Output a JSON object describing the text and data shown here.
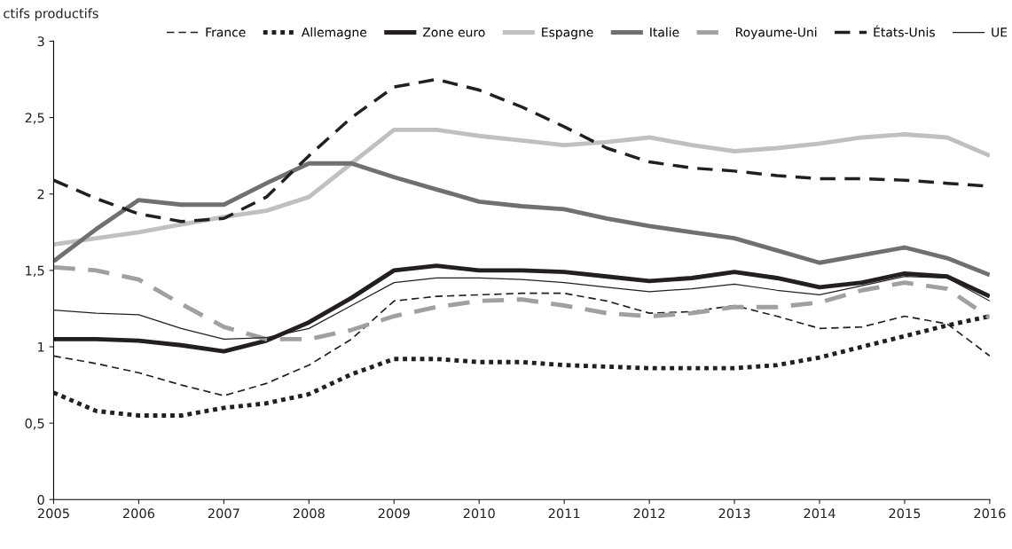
{
  "chart_data": {
    "type": "line",
    "ylabel": "ctifs productifs",
    "x": [
      2005,
      2005.5,
      2006,
      2006.5,
      2007,
      2007.5,
      2008,
      2008.5,
      2009,
      2009.5,
      2010,
      2010.5,
      2011,
      2011.5,
      2012,
      2012.5,
      2013,
      2013.5,
      2014,
      2014.5,
      2015,
      2015.5,
      2016
    ],
    "series": [
      {
        "name": "France",
        "color": "#231f20",
        "line_style": "dashed",
        "values": [
          0.94,
          0.89,
          0.83,
          0.75,
          0.68,
          0.76,
          0.88,
          1.05,
          1.3,
          1.33,
          1.34,
          1.35,
          1.35,
          1.3,
          1.22,
          1.23,
          1.27,
          1.2,
          1.12,
          1.13,
          1.2,
          1.15,
          0.94
        ]
      },
      {
        "name": "Allemagne",
        "color": "#231f20",
        "line_style": "dotted",
        "values": [
          0.7,
          0.58,
          0.55,
          0.55,
          0.6,
          0.63,
          0.69,
          0.82,
          0.92,
          0.92,
          0.9,
          0.9,
          0.88,
          0.87,
          0.86,
          0.86,
          0.86,
          0.88,
          0.93,
          1.0,
          1.07,
          1.14,
          1.2
        ]
      },
      {
        "name": "Zone euro",
        "color": "#231f20",
        "line_style": "solid",
        "values": [
          1.05,
          1.05,
          1.04,
          1.01,
          0.97,
          1.04,
          1.16,
          1.32,
          1.5,
          1.53,
          1.5,
          1.5,
          1.49,
          1.46,
          1.43,
          1.45,
          1.49,
          1.45,
          1.39,
          1.42,
          1.48,
          1.46,
          1.33
        ]
      },
      {
        "name": "Espagne",
        "color": "#c0c0c0",
        "line_style": "solid",
        "values": [
          1.67,
          1.71,
          1.75,
          1.8,
          1.85,
          1.89,
          1.98,
          2.2,
          2.42,
          2.42,
          2.38,
          2.35,
          2.32,
          2.34,
          2.37,
          2.32,
          2.28,
          2.3,
          2.33,
          2.37,
          2.39,
          2.37,
          2.25
        ]
      },
      {
        "name": "Italie",
        "color": "#707070",
        "line_style": "solid",
        "values": [
          1.56,
          1.77,
          1.96,
          1.93,
          1.93,
          2.07,
          2.2,
          2.2,
          2.11,
          2.03,
          1.95,
          1.92,
          1.9,
          1.84,
          1.79,
          1.75,
          1.71,
          1.63,
          1.55,
          1.6,
          1.65,
          1.58,
          1.47
        ]
      },
      {
        "name": "Royaume-Uni",
        "color": "#a0a0a0",
        "line_style": "dashed",
        "values": [
          1.52,
          1.5,
          1.44,
          1.28,
          1.13,
          1.05,
          1.05,
          1.11,
          1.2,
          1.26,
          1.3,
          1.31,
          1.27,
          1.22,
          1.2,
          1.22,
          1.26,
          1.26,
          1.29,
          1.37,
          1.42,
          1.38,
          1.19
        ]
      },
      {
        "name": "États-Unis",
        "color": "#231f20",
        "line_style": "dashed",
        "values": [
          2.09,
          1.97,
          1.87,
          1.82,
          1.84,
          1.98,
          2.25,
          2.5,
          2.7,
          2.75,
          2.68,
          2.57,
          2.44,
          2.3,
          2.21,
          2.17,
          2.15,
          2.12,
          2.1,
          2.1,
          2.09,
          2.07,
          2.05
        ]
      },
      {
        "name": "UE",
        "color": "#231f20",
        "line_style": "solid",
        "values": [
          1.24,
          1.22,
          1.21,
          1.12,
          1.05,
          1.06,
          1.12,
          1.27,
          1.42,
          1.45,
          1.45,
          1.44,
          1.42,
          1.39,
          1.36,
          1.38,
          1.41,
          1.37,
          1.34,
          1.4,
          1.46,
          1.45,
          1.3
        ]
      }
    ],
    "xlim": [
      2005,
      2016
    ],
    "xticks": [
      2005,
      2006,
      2007,
      2008,
      2009,
      2010,
      2011,
      2012,
      2013,
      2014,
      2015,
      2016
    ],
    "ylim": [
      0,
      3
    ],
    "yticks": [
      0,
      {
        "value": 0.5,
        "label": "0,5"
      },
      1,
      {
        "value": 1.5,
        "label": "1,5"
      },
      2,
      {
        "value": 2.5,
        "label": "2,5"
      },
      3
    ],
    "legend": "top",
    "grid": false,
    "marker": "none"
  }
}
